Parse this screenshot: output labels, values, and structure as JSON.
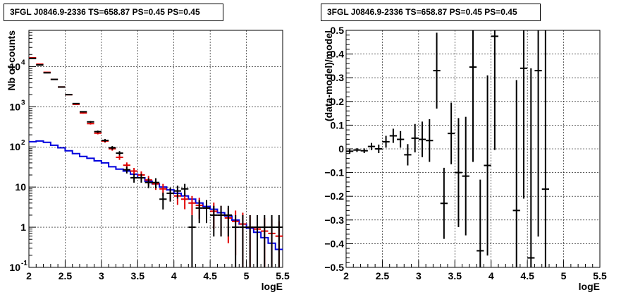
{
  "chart_data": [
    {
      "type": "step+errorbar",
      "title": "3FGL J0846.9-2336 TS=658.87 PS=0.45 PS=0.45",
      "xlabel": "logE",
      "ylabel": "Nb of counts",
      "xlim": [
        2,
        5.5
      ],
      "ylim": [
        0.1,
        80000
      ],
      "yscale": "log",
      "grid": true,
      "x_ticks": [
        "2",
        "2.5",
        "3",
        "3.5",
        "4",
        "4.5",
        "5",
        "5.5"
      ],
      "y_ticks": [
        {
          "v": 0.1,
          "label": "10",
          "exp": "-1"
        },
        {
          "v": 1,
          "label": "1",
          "exp": ""
        },
        {
          "v": 10,
          "label": "10",
          "exp": ""
        },
        {
          "v": 100,
          "label": "10",
          "exp": "2"
        },
        {
          "v": 1000,
          "label": "10",
          "exp": "3"
        },
        {
          "v": 10000,
          "label": "10",
          "exp": "4"
        }
      ],
      "bin_width": 0.1,
      "x_centers": [
        2.05,
        2.15,
        2.25,
        2.35,
        2.45,
        2.55,
        2.65,
        2.75,
        2.85,
        2.95,
        3.05,
        3.15,
        3.25,
        3.35,
        3.45,
        3.55,
        3.65,
        3.75,
        3.85,
        3.95,
        4.05,
        4.15,
        4.25,
        4.35,
        4.45,
        4.55,
        4.65,
        4.75,
        4.85,
        4.95,
        5.05,
        5.15,
        5.25,
        5.35,
        5.45
      ],
      "series": [
        {
          "role": "data",
          "color": "#000000",
          "values": [
            16000,
            11000,
            7000,
            4800,
            3100,
            2000,
            1200,
            750,
            420,
            240,
            145,
            95,
            70,
            27,
            17,
            17,
            13,
            13,
            5,
            7,
            8,
            9,
            1,
            3,
            3,
            2,
            2,
            2,
            1,
            1,
            1,
            1,
            1,
            1,
            1
          ]
        },
        {
          "role": "model_total",
          "color": "#e00000",
          "values": [
            16500,
            11500,
            7200,
            4800,
            3100,
            2000,
            1150,
            700,
            380,
            220,
            140,
            90,
            55,
            35,
            25,
            20,
            15,
            12,
            9,
            7,
            6,
            5,
            4,
            3.5,
            3,
            2.5,
            2,
            1.7,
            1.4,
            1.2,
            1,
            0.9,
            0.8,
            0.7,
            0.6
          ],
          "errors": [
            130,
            110,
            85,
            70,
            55,
            45,
            34,
            27,
            20,
            15,
            12,
            9.5,
            7.5,
            6,
            5,
            4.5,
            3.9,
            3.5,
            3,
            2.6,
            2.4,
            2.2,
            2,
            1.9,
            1.7,
            1.6,
            1.4,
            1.3,
            1.2,
            1.1,
            1,
            0.95,
            0.9,
            0.85,
            0.8
          ]
        },
        {
          "role": "model_source",
          "color": "#0000dd",
          "values": [
            135,
            140,
            130,
            110,
            95,
            80,
            68,
            58,
            52,
            45,
            40,
            32,
            28,
            25,
            21,
            17,
            14,
            12,
            10,
            8.5,
            7,
            6,
            5,
            4,
            3.3,
            2.8,
            2.3,
            1.9,
            1.5,
            1.2,
            0.95,
            0.75,
            0.55,
            0.4,
            0.28
          ]
        }
      ]
    },
    {
      "type": "errorbar",
      "title": "3FGL J0846.9-2336 TS=658.87 PS=0.45 PS=0.45",
      "xlabel": "logE",
      "ylabel": "(data-model)/model",
      "xlim": [
        2,
        5.5
      ],
      "ylim": [
        -0.5,
        0.5
      ],
      "grid": true,
      "x_ticks": [
        "2",
        "2.5",
        "3",
        "3.5",
        "4",
        "4.5",
        "5",
        "5.5"
      ],
      "y_ticks": [
        "−0.5",
        "−0.4",
        "−0.3",
        "−0.2",
        "−0.1",
        "0",
        "0.1",
        "0.2",
        "0.3",
        "0.4",
        "0.5"
      ],
      "bin_width": 0.1,
      "points": [
        {
          "x": 2.05,
          "y": -0.01,
          "err": 0.01
        },
        {
          "x": 2.15,
          "y": -0.005,
          "err": 0.008
        },
        {
          "x": 2.25,
          "y": -0.008,
          "err": 0.01
        },
        {
          "x": 2.35,
          "y": 0.01,
          "err": 0.015
        },
        {
          "x": 2.45,
          "y": 0.0,
          "err": 0.018
        },
        {
          "x": 2.55,
          "y": 0.03,
          "err": 0.025
        },
        {
          "x": 2.65,
          "y": 0.055,
          "err": 0.03
        },
        {
          "x": 2.75,
          "y": 0.04,
          "err": 0.035
        },
        {
          "x": 2.85,
          "y": -0.025,
          "err": 0.045
        },
        {
          "x": 2.95,
          "y": 0.045,
          "err": 0.06
        },
        {
          "x": 3.05,
          "y": 0.04,
          "err": 0.075
        },
        {
          "x": 3.15,
          "y": 0.035,
          "err": 0.09
        },
        {
          "x": 3.25,
          "y": 0.33,
          "err": 0.16
        },
        {
          "x": 3.35,
          "y": -0.23,
          "err": 0.15
        },
        {
          "x": 3.45,
          "y": 0.065,
          "err": 0.13
        },
        {
          "x": 3.55,
          "y": -0.1,
          "err": 0.23
        },
        {
          "x": 3.65,
          "y": -0.115,
          "err": 0.25
        },
        {
          "x": 3.75,
          "y": 0.345,
          "err": 0.4
        },
        {
          "x": 3.85,
          "y": -0.43,
          "err": 0.3
        },
        {
          "x": 3.95,
          "y": -0.07,
          "err": 0.38
        },
        {
          "x": 4.05,
          "y": 0.475,
          "err": 0.48
        },
        {
          "x": 4.35,
          "y": -0.26,
          "err": 0.55
        },
        {
          "x": 4.45,
          "y": 0.34,
          "err": 0.55
        },
        {
          "x": 4.55,
          "y": -0.46,
          "err": 0.8
        },
        {
          "x": 4.65,
          "y": 0.33,
          "err": 0.7
        },
        {
          "x": 4.75,
          "y": -0.17,
          "err": 0.9
        }
      ]
    }
  ]
}
